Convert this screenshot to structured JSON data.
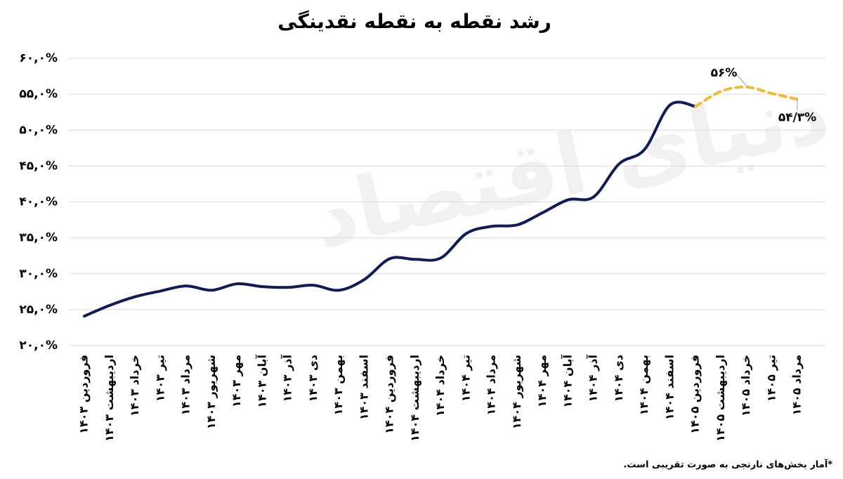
{
  "chart_data": {
    "type": "line",
    "title": "رشد نقطه به نقطه نقدینگی",
    "watermark": "دنیای اقتصاد",
    "footnote": "*آمار بخش‌های  نارنجی به صورت تقریبی است.",
    "categories": [
      "فروردین ۱۴۰۳",
      "اردیبهشت ۱۴۰۳",
      "خرداد ۱۴۰۳",
      "تیر ۱۴۰۳",
      "مرداد ۱۴۰۳",
      "شهریور ۱۴۰۳",
      "مهر ۱۴۰۳",
      "آبان ۱۴۰۳",
      "آذر ۱۴۰۳",
      "دی ۱۴۰۳",
      "بهمن ۱۴۰۳",
      "اسفند ۱۴۰۳",
      "فروردین ۱۴۰۴",
      "اردیبهشت ۱۴۰۴",
      "خرداد ۱۴۰۴",
      "تیر ۱۴۰۴",
      "مرداد ۱۴۰۴",
      "شهریور ۱۴۰۴",
      "مهر ۱۴۰۴",
      "آبان ۱۴۰۴",
      "آذر ۱۴۰۴",
      "دی ۱۴۰۴",
      "بهمن ۱۴۰۴",
      "اسفند ۱۴۰۴",
      "فروردین ۱۴۰۵",
      "اردیبهشت ۱۴۰۵",
      "خرداد ۱۴۰۵",
      "تیر ۱۴۰۵",
      "مرداد ۱۴۰۵"
    ],
    "series": [
      {
        "color": "#0f1c5c",
        "dashed": false,
        "values": [
          24.1,
          25.6,
          26.8,
          27.6,
          28.3,
          27.7,
          28.6,
          28.2,
          28.1,
          28.4,
          27.7,
          29.2,
          32.1,
          32.0,
          32.2,
          35.6,
          36.6,
          36.8,
          38.5,
          40.3,
          40.7,
          45.3,
          47.3,
          53.5,
          53.3,
          null,
          null,
          null,
          null
        ]
      },
      {
        "color": "#f6b931",
        "dashed": true,
        "values": [
          null,
          null,
          null,
          null,
          null,
          null,
          null,
          null,
          null,
          null,
          null,
          null,
          null,
          null,
          null,
          null,
          null,
          null,
          null,
          null,
          null,
          null,
          null,
          null,
          53.3,
          55.4,
          56,
          55.1,
          54.3
        ],
        "value_labels": [
          null,
          null,
          null,
          null,
          null,
          null,
          null,
          null,
          null,
          null,
          null,
          null,
          null,
          null,
          null,
          null,
          null,
          null,
          null,
          null,
          null,
          null,
          null,
          null,
          null,
          null,
          "۵۶%",
          null,
          "۵۴/۳%"
        ]
      }
    ],
    "ylim": [
      20,
      60
    ],
    "yticks": [
      {
        "value": 20,
        "label": "۲۰,۰%"
      },
      {
        "value": 25,
        "label": "۲۵,۰%"
      },
      {
        "value": 30,
        "label": "۳۰,۰%"
      },
      {
        "value": 35,
        "label": "۳۵,۰%"
      },
      {
        "value": 40,
        "label": "۴۰,۰%"
      },
      {
        "value": 45,
        "label": "۴۵,۰%"
      },
      {
        "value": 50,
        "label": "۵۰,۰%"
      },
      {
        "value": 55,
        "label": "۵۵,۰%"
      },
      {
        "value": 60,
        "label": "۶۰,۰%"
      }
    ],
    "grid": true
  }
}
